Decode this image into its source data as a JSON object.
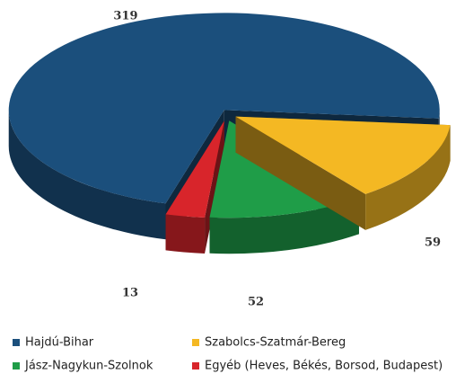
{
  "chart_data": {
    "type": "pie",
    "categories": [
      "Hajdú-Bihar",
      "Szabolcs-Szatmár-Bereg",
      "Jász-Nagykun-Szolnok",
      "Egyéb (Heves, Békés, Borsod, Budapest)"
    ],
    "values": [
      319,
      59,
      52,
      13
    ],
    "colors": [
      "#1b4f7c",
      "#f4b823",
      "#1f9d48",
      "#d8252b"
    ]
  }
}
